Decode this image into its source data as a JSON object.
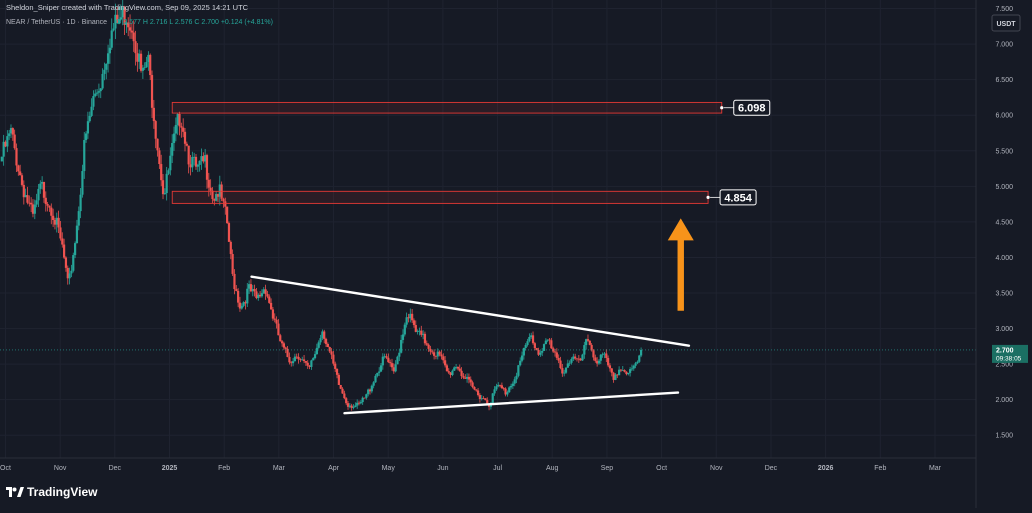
{
  "header": {
    "attribution": "Sheldon_Sniper created with TradingView.com, Sep 09, 2025 14:21 UTC",
    "symbol": "NEAR / TetherUS · 1D · Binance",
    "ohlc": "O 2.577  H 2.716  L 2.576  C 2.700  +0.124 (+4.81%)"
  },
  "currency_label": "USDT",
  "brand": {
    "name": "TradingView"
  },
  "colors": {
    "background": "#161a25",
    "up": "#26a69a",
    "down": "#ef5350",
    "zone": "#e53935",
    "trendline": "#ffffff",
    "arrow": "#f7931a",
    "price_tag": "#1b6f63"
  },
  "chart_data": {
    "type": "candlestick",
    "title": "NEAR / TetherUS · 1D · Binance",
    "x_labels": [
      {
        "label": "Oct",
        "month": 0
      },
      {
        "label": "Nov",
        "month": 1
      },
      {
        "label": "Dec",
        "month": 2
      },
      {
        "label": "2025",
        "month": 3
      },
      {
        "label": "Feb",
        "month": 4
      },
      {
        "label": "Mar",
        "month": 5
      },
      {
        "label": "Apr",
        "month": 6
      },
      {
        "label": "May",
        "month": 7
      },
      {
        "label": "Jun",
        "month": 8
      },
      {
        "label": "Jul",
        "month": 9
      },
      {
        "label": "Aug",
        "month": 10
      },
      {
        "label": "Sep",
        "month": 11
      },
      {
        "label": "Oct",
        "month": 12
      },
      {
        "label": "Nov",
        "month": 13
      },
      {
        "label": "Dec",
        "month": 14
      },
      {
        "label": "2026",
        "month": 15
      },
      {
        "label": "Feb",
        "month": 16
      },
      {
        "label": "Mar",
        "month": 17
      }
    ],
    "y_ticks": [
      "1.500",
      "2.000",
      "2.500",
      "3.000",
      "3.500",
      "4.000",
      "4.500",
      "5.000",
      "5.500",
      "6.000",
      "6.500",
      "7.000",
      "7.500"
    ],
    "y_range": [
      1.18,
      7.62
    ],
    "x_range": [
      -0.1,
      17.75
    ],
    "price_path": [
      [
        -0.1,
        5.35
      ],
      [
        0.1,
        5.75
      ],
      [
        0.3,
        5.05
      ],
      [
        0.5,
        4.55
      ],
      [
        0.65,
        5.0
      ],
      [
        0.85,
        4.7
      ],
      [
        1.05,
        4.1
      ],
      [
        1.15,
        3.55
      ],
      [
        1.3,
        4.4
      ],
      [
        1.45,
        5.6
      ],
      [
        1.6,
        6.2
      ],
      [
        1.75,
        6.5
      ],
      [
        1.9,
        7.1
      ],
      [
        2.05,
        7.3
      ],
      [
        2.2,
        7.45
      ],
      [
        2.35,
        7.2
      ],
      [
        2.5,
        6.5
      ],
      [
        2.6,
        6.8
      ],
      [
        2.75,
        5.8
      ],
      [
        2.9,
        4.85
      ],
      [
        3.05,
        5.5
      ],
      [
        3.2,
        6.05
      ],
      [
        3.35,
        5.45
      ],
      [
        3.5,
        5.2
      ],
      [
        3.65,
        5.35
      ],
      [
        3.8,
        4.85
      ],
      [
        3.9,
        4.95
      ],
      [
        4.05,
        4.5
      ],
      [
        4.15,
        3.75
      ],
      [
        4.3,
        3.3
      ],
      [
        4.45,
        3.55
      ],
      [
        4.6,
        3.4
      ],
      [
        4.75,
        3.6
      ],
      [
        4.9,
        3.15
      ],
      [
        5.05,
        2.75
      ],
      [
        5.2,
        2.55
      ],
      [
        5.35,
        2.65
      ],
      [
        5.55,
        2.4
      ],
      [
        5.7,
        2.75
      ],
      [
        5.8,
        3.0
      ],
      [
        5.95,
        2.6
      ],
      [
        6.1,
        2.2
      ],
      [
        6.25,
        1.95
      ],
      [
        6.45,
        1.9
      ],
      [
        6.6,
        2.05
      ],
      [
        6.8,
        2.4
      ],
      [
        6.95,
        2.6
      ],
      [
        7.1,
        2.35
      ],
      [
        7.25,
        2.9
      ],
      [
        7.35,
        3.25
      ],
      [
        7.5,
        2.95
      ],
      [
        7.65,
        2.85
      ],
      [
        7.8,
        2.7
      ],
      [
        7.95,
        2.6
      ],
      [
        8.1,
        2.35
      ],
      [
        8.25,
        2.5
      ],
      [
        8.4,
        2.3
      ],
      [
        8.55,
        2.15
      ],
      [
        8.7,
        2.05
      ],
      [
        8.85,
        1.95
      ],
      [
        9.0,
        2.2
      ],
      [
        9.15,
        2.1
      ],
      [
        9.3,
        2.3
      ],
      [
        9.45,
        2.6
      ],
      [
        9.6,
        2.9
      ],
      [
        9.75,
        2.65
      ],
      [
        9.9,
        2.85
      ],
      [
        10.05,
        2.6
      ],
      [
        10.2,
        2.4
      ],
      [
        10.35,
        2.6
      ],
      [
        10.5,
        2.5
      ],
      [
        10.65,
        2.85
      ],
      [
        10.8,
        2.55
      ],
      [
        10.95,
        2.6
      ],
      [
        11.1,
        2.3
      ],
      [
        11.25,
        2.45
      ],
      [
        11.4,
        2.35
      ],
      [
        11.55,
        2.5
      ],
      [
        11.63,
        2.7
      ]
    ],
    "zones": [
      {
        "label": "6.098",
        "top": 6.18,
        "bottom": 6.03,
        "x_start": 3.05,
        "x_end": 13.1
      },
      {
        "label": "4.854",
        "top": 4.93,
        "bottom": 4.76,
        "x_start": 3.05,
        "x_end": 12.85
      }
    ],
    "trendlines": [
      {
        "name": "upper-resistance",
        "from": [
          4.5,
          3.73
        ],
        "to": [
          12.5,
          2.76
        ]
      },
      {
        "name": "lower-support",
        "from": [
          6.2,
          1.81
        ],
        "to": [
          12.3,
          2.1
        ]
      }
    ],
    "arrow": {
      "x": 12.35,
      "from": 3.25,
      "to": 4.55,
      "direction": "up"
    },
    "current_price": {
      "value": 2.7,
      "label": "2.700",
      "countdown": "09:38:05"
    }
  }
}
